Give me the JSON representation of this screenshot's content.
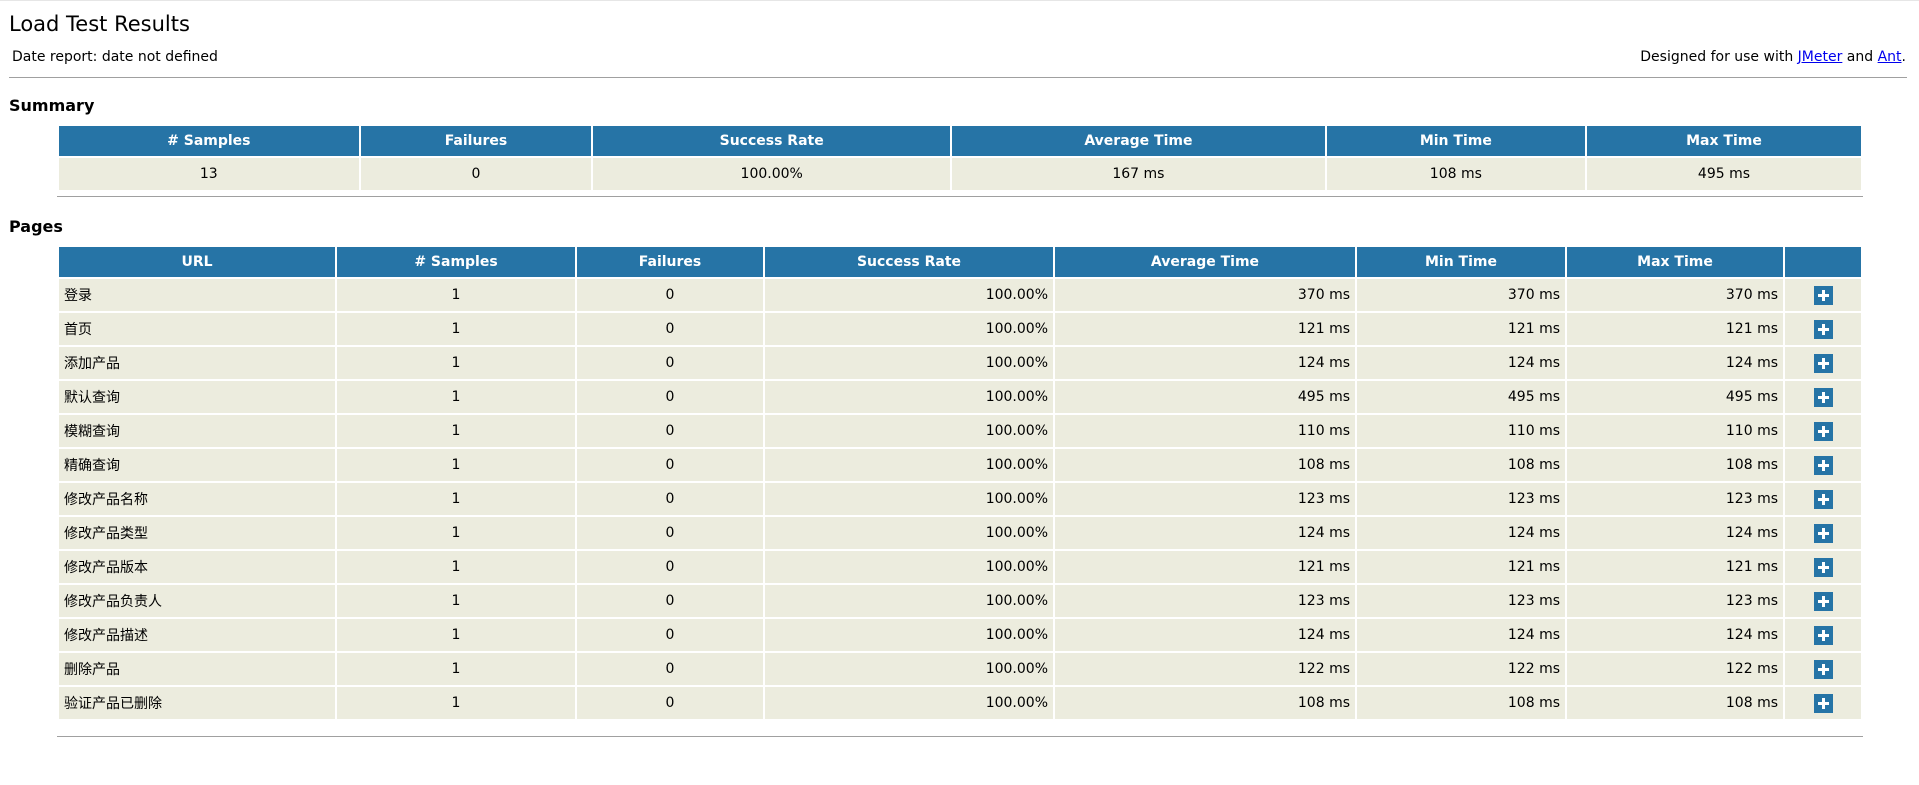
{
  "header": {
    "title": "Load Test Results",
    "date_report": "Date report: date not defined",
    "designed_prefix": "Designed for use with ",
    "jmeter_link": "JMeter",
    "and_text": " and ",
    "ant_link": "Ant",
    "period": "."
  },
  "summary": {
    "title": "Summary",
    "headers": [
      "# Samples",
      "Failures",
      "Success Rate",
      "Average Time",
      "Min Time",
      "Max Time"
    ],
    "row": [
      "13",
      "0",
      "100.00%",
      "167 ms",
      "108 ms",
      "495 ms"
    ]
  },
  "pages": {
    "title": "Pages",
    "headers": [
      "URL",
      "# Samples",
      "Failures",
      "Success Rate",
      "Average Time",
      "Min Time",
      "Max Time",
      ""
    ],
    "rows": [
      {
        "url": "登录",
        "samples": "1",
        "failures": "0",
        "success": "100.00%",
        "avg": "370 ms",
        "min": "370 ms",
        "max": "370 ms"
      },
      {
        "url": "首页",
        "samples": "1",
        "failures": "0",
        "success": "100.00%",
        "avg": "121 ms",
        "min": "121 ms",
        "max": "121 ms"
      },
      {
        "url": "添加产品",
        "samples": "1",
        "failures": "0",
        "success": "100.00%",
        "avg": "124 ms",
        "min": "124 ms",
        "max": "124 ms"
      },
      {
        "url": "默认查询",
        "samples": "1",
        "failures": "0",
        "success": "100.00%",
        "avg": "495 ms",
        "min": "495 ms",
        "max": "495 ms"
      },
      {
        "url": "模糊查询",
        "samples": "1",
        "failures": "0",
        "success": "100.00%",
        "avg": "110 ms",
        "min": "110 ms",
        "max": "110 ms"
      },
      {
        "url": "精确查询",
        "samples": "1",
        "failures": "0",
        "success": "100.00%",
        "avg": "108 ms",
        "min": "108 ms",
        "max": "108 ms"
      },
      {
        "url": "修改产品名称",
        "samples": "1",
        "failures": "0",
        "success": "100.00%",
        "avg": "123 ms",
        "min": "123 ms",
        "max": "123 ms"
      },
      {
        "url": "修改产品类型",
        "samples": "1",
        "failures": "0",
        "success": "100.00%",
        "avg": "124 ms",
        "min": "124 ms",
        "max": "124 ms"
      },
      {
        "url": "修改产品版本",
        "samples": "1",
        "failures": "0",
        "success": "100.00%",
        "avg": "121 ms",
        "min": "121 ms",
        "max": "121 ms"
      },
      {
        "url": "修改产品负责人",
        "samples": "1",
        "failures": "0",
        "success": "100.00%",
        "avg": "123 ms",
        "min": "123 ms",
        "max": "123 ms"
      },
      {
        "url": "修改产品描述",
        "samples": "1",
        "failures": "0",
        "success": "100.00%",
        "avg": "124 ms",
        "min": "124 ms",
        "max": "124 ms"
      },
      {
        "url": "删除产品",
        "samples": "1",
        "failures": "0",
        "success": "100.00%",
        "avg": "122 ms",
        "min": "122 ms",
        "max": "122 ms"
      },
      {
        "url": "验证产品已删除",
        "samples": "1",
        "failures": "0",
        "success": "100.00%",
        "avg": "108 ms",
        "min": "108 ms",
        "max": "108 ms"
      }
    ],
    "row_action_icon": "expand-plus-icon"
  },
  "colors": {
    "header_bg": "#2674a6",
    "header_text": "#ffffff",
    "cell_bg": "#ececde",
    "link": "#0000ee"
  }
}
